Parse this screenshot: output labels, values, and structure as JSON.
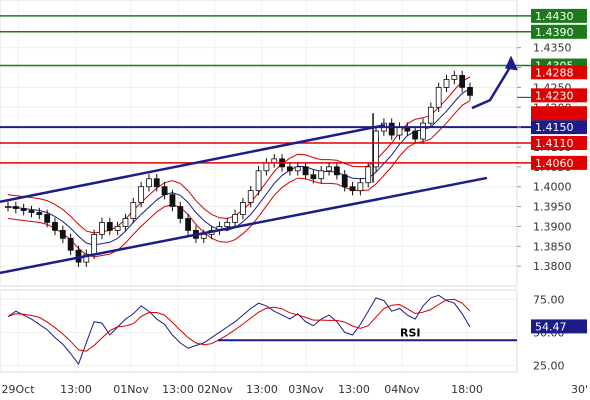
{
  "chart_data": {
    "type": "candlestick",
    "title": "",
    "timeframe": "30'",
    "x_labels": [
      "29Oct",
      "13:00",
      "01Nov",
      "13:00",
      "02Nov",
      "13:00",
      "03Nov",
      "13:00",
      "04Nov",
      "18:00"
    ],
    "price_axis": {
      "ylim": [
        1.375,
        1.447
      ],
      "ticks": [
        "1.3800",
        "1.3850",
        "1.3900",
        "1.3950",
        "1.4000",
        "1.4050",
        "1.4100",
        "1.4150",
        "1.4200",
        "1.4250",
        "1.4300",
        "1.4350"
      ]
    },
    "resistance_levels": [
      {
        "value": 1.443,
        "label": "1.4430",
        "color": "#1c7a1c"
      },
      {
        "value": 1.439,
        "label": "1.4390",
        "color": "#1c7a1c"
      },
      {
        "value": 1.4305,
        "label": "1.4305",
        "color": "#1c7a1c"
      }
    ],
    "pivot_level": {
      "value": 1.415,
      "label": "1.4150",
      "color": "#1c1c8a"
    },
    "support_levels": [
      {
        "value": 1.411,
        "label": "1.4110",
        "color": "#e00000"
      },
      {
        "value": 1.406,
        "label": "1.4060",
        "color": "#e00000"
      }
    ],
    "extra_price_labels": [
      {
        "value": 1.4288,
        "label": "1.4288",
        "color": "#e00000"
      },
      {
        "value": 1.423,
        "label": "1.4230",
        "color": "#e00000"
      },
      {
        "value": 1.4185,
        "label": "",
        "color": "#e00000"
      }
    ],
    "last_price": 1.4225,
    "channel": {
      "upper": {
        "from": [
          0,
          1.3962
        ],
        "to": [
          385,
          1.4155
        ]
      },
      "lower": {
        "from": [
          0,
          1.3783
        ],
        "to": [
          487,
          1.4022
        ]
      }
    },
    "forecast_arrow": [
      [
        472,
        1.4198
      ],
      [
        490,
        1.4218
      ],
      [
        511,
        1.4305
      ]
    ],
    "closes": [
      1.395,
      1.3945,
      1.394,
      1.3935,
      1.393,
      1.391,
      1.389,
      1.387,
      1.384,
      1.381,
      1.383,
      1.388,
      1.391,
      1.389,
      1.39,
      1.392,
      1.396,
      1.4,
      1.402,
      1.4,
      1.398,
      1.395,
      1.392,
      1.389,
      1.387,
      1.388,
      1.389,
      1.39,
      1.391,
      1.393,
      1.396,
      1.399,
      1.404,
      1.406,
      1.407,
      1.405,
      1.404,
      1.405,
      1.403,
      1.402,
      1.404,
      1.405,
      1.403,
      1.4,
      1.399,
      1.401,
      1.405,
      1.414,
      1.416,
      1.413,
      1.415,
      1.414,
      1.412,
      1.416,
      1.42,
      1.425,
      1.427,
      1.428,
      1.425,
      1.423
    ],
    "rsi": {
      "label": "RSI",
      "ylim": [
        20,
        82
      ],
      "ticks": [
        "25.00",
        "50.00",
        "75.00"
      ],
      "last_value": "54.47",
      "reference_line": 44,
      "values": [
        62,
        66,
        63,
        60,
        56,
        52,
        46,
        41,
        34,
        26,
        42,
        58,
        57,
        48,
        54,
        60,
        64,
        70,
        66,
        60,
        56,
        48,
        42,
        38,
        40,
        42,
        46,
        50,
        54,
        58,
        63,
        68,
        72,
        70,
        66,
        63,
        60,
        64,
        58,
        55,
        60,
        63,
        58,
        50,
        48,
        56,
        66,
        76,
        74,
        66,
        68,
        63,
        60,
        70,
        76,
        78,
        74,
        72,
        64,
        54
      ]
    }
  }
}
